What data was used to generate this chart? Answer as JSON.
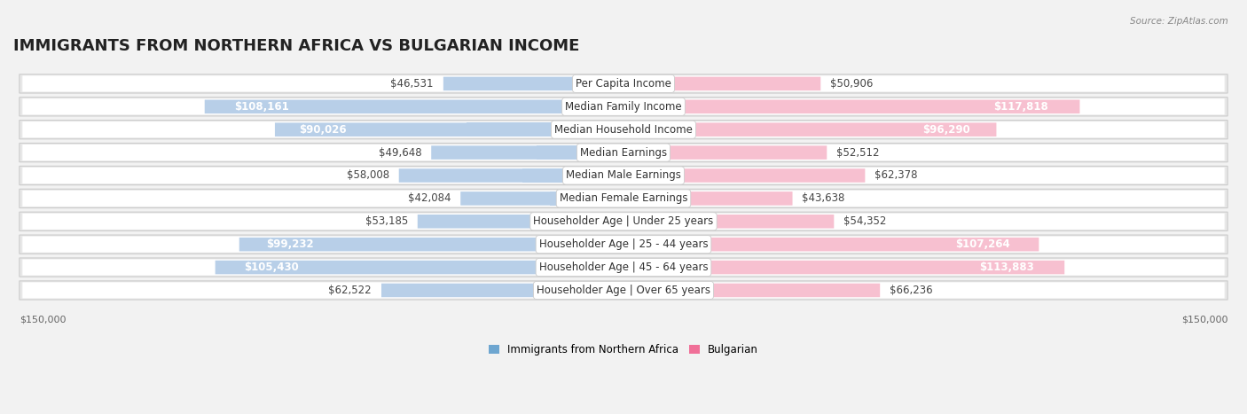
{
  "title": "IMMIGRANTS FROM NORTHERN AFRICA VS BULGARIAN INCOME",
  "source": "Source: ZipAtlas.com",
  "categories": [
    "Per Capita Income",
    "Median Family Income",
    "Median Household Income",
    "Median Earnings",
    "Median Male Earnings",
    "Median Female Earnings",
    "Householder Age | Under 25 years",
    "Householder Age | 25 - 44 years",
    "Householder Age | 45 - 64 years",
    "Householder Age | Over 65 years"
  ],
  "left_values": [
    46531,
    108161,
    90026,
    49648,
    58008,
    42084,
    53185,
    99232,
    105430,
    62522
  ],
  "right_values": [
    50906,
    117818,
    96290,
    52512,
    62378,
    43638,
    54352,
    107264,
    113883,
    66236
  ],
  "left_labels": [
    "$46,531",
    "$108,161",
    "$90,026",
    "$49,648",
    "$58,008",
    "$42,084",
    "$53,185",
    "$99,232",
    "$105,430",
    "$62,522"
  ],
  "right_labels": [
    "$50,906",
    "$117,818",
    "$96,290",
    "$52,512",
    "$62,378",
    "$43,638",
    "$54,352",
    "$107,264",
    "$113,883",
    "$66,236"
  ],
  "left_color_light": "#b8cfe8",
  "left_color_dark": "#6ea6d0",
  "right_color_light": "#f7c0d0",
  "right_color_dark": "#f07098",
  "max_value": 150000,
  "background_color": "#f2f2f2",
  "row_bg_color": "#e8e8e8",
  "row_inner_color": "#ffffff",
  "legend_left": "Immigrants from Northern Africa",
  "legend_right": "Bulgarian",
  "title_fontsize": 13,
  "label_fontsize": 8.5,
  "category_fontsize": 8.5,
  "axis_label_fontsize": 8,
  "large_threshold": 70000,
  "label_inside_color": "white",
  "label_outside_color": "#444444"
}
